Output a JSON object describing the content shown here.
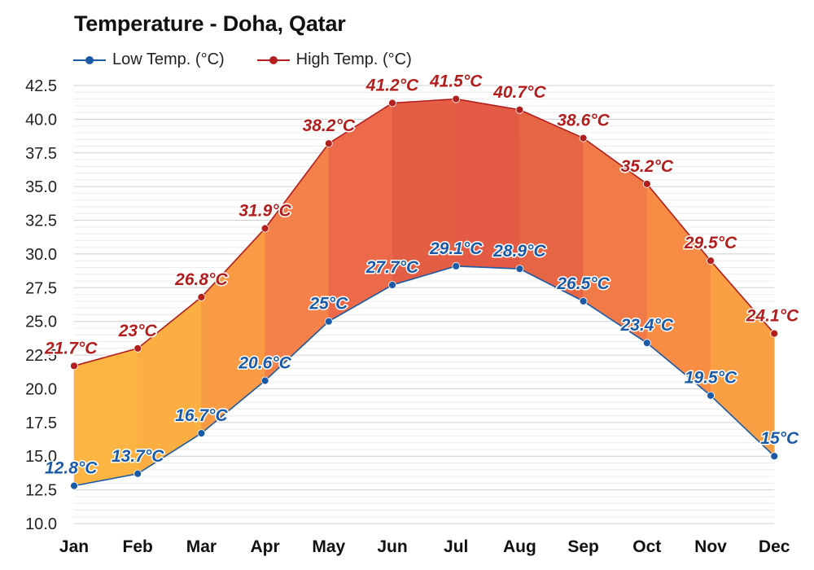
{
  "chart_data": {
    "type": "area",
    "title": "Temperature - Doha, Qatar",
    "categories": [
      "Jan",
      "Feb",
      "Mar",
      "Apr",
      "May",
      "Jun",
      "Jul",
      "Aug",
      "Sep",
      "Oct",
      "Nov",
      "Dec"
    ],
    "series": [
      {
        "name": "Low Temp. (°C)",
        "color": "#1a5aa6",
        "values": [
          12.8,
          13.7,
          16.7,
          20.6,
          25,
          27.7,
          29.1,
          28.9,
          26.5,
          23.4,
          19.5,
          15
        ],
        "labels": [
          "12.8°C",
          "13.7°C",
          "16.7°C",
          "20.6°C",
          "25°C",
          "27.7°C",
          "29.1°C",
          "28.9°C",
          "26.5°C",
          "23.4°C",
          "19.5°C",
          "15°C"
        ]
      },
      {
        "name": "High Temp. (°C)",
        "color": "#b21e1e",
        "values": [
          21.7,
          23,
          26.8,
          31.9,
          38.2,
          41.2,
          41.5,
          40.7,
          38.6,
          35.2,
          29.5,
          24.1
        ],
        "labels": [
          "21.7°C",
          "23°C",
          "26.8°C",
          "31.9°C",
          "38.2°C",
          "41.2°C",
          "41.5°C",
          "40.7°C",
          "38.6°C",
          "35.2°C",
          "29.5°C",
          "24.1°C"
        ]
      }
    ],
    "ylim": [
      10,
      42.5
    ],
    "yticks": [
      "10.0",
      "12.5",
      "15.0",
      "17.5",
      "20.0",
      "22.5",
      "25.0",
      "27.5",
      "30.0",
      "32.5",
      "35.0",
      "37.5",
      "40.0",
      "42.5"
    ],
    "grid": true,
    "legend_position": "top-left",
    "band_colors": [
      "#fcb542",
      "#fbae41",
      "#f99a44",
      "#f4804a",
      "#ec6a4a",
      "#e45e46",
      "#e35b45",
      "#e56545",
      "#f07a48",
      "#f88c45",
      "#fa9f43",
      "#fcb542"
    ]
  }
}
